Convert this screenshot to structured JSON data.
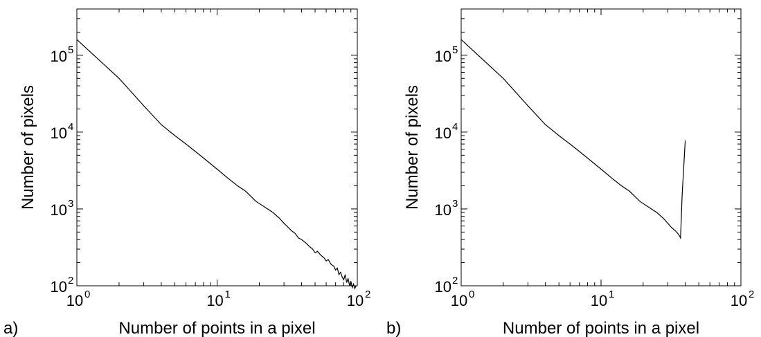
{
  "chart_data": [
    {
      "type": "line",
      "panel_label": "a)",
      "xlabel": "Number of points in a pixel",
      "ylabel": "Number of pixels",
      "xscale": "log",
      "yscale": "log",
      "xlim": [
        1,
        100
      ],
      "ylim": [
        100,
        400000
      ],
      "xticks": [
        {
          "base": "10",
          "exp": "0",
          "value": 1
        },
        {
          "base": "10",
          "exp": "1",
          "value": 10
        },
        {
          "base": "10",
          "exp": "2",
          "value": 100
        }
      ],
      "yticks": [
        {
          "base": "10",
          "exp": "2",
          "value": 100
        },
        {
          "base": "10",
          "exp": "3",
          "value": 1000
        },
        {
          "base": "10",
          "exp": "4",
          "value": 10000
        },
        {
          "base": "10",
          "exp": "5",
          "value": 100000
        }
      ],
      "grid": false,
      "series": [
        {
          "x": [
            1,
            2,
            3,
            4,
            5,
            6,
            7,
            8,
            10,
            12,
            14,
            16,
            19,
            22,
            25,
            28,
            30,
            32,
            34,
            36,
            38,
            40,
            43,
            46,
            48,
            50,
            52,
            55,
            58,
            60,
            62,
            65,
            68,
            70,
            72,
            74,
            76,
            78,
            80,
            82,
            84,
            86,
            88,
            90,
            92,
            94,
            96,
            98
          ],
          "y": [
            160000,
            50000,
            22000,
            12500,
            9000,
            7000,
            5600,
            4600,
            3300,
            2500,
            2000,
            1700,
            1250,
            1050,
            900,
            750,
            650,
            580,
            520,
            480,
            420,
            400,
            360,
            320,
            300,
            270,
            280,
            250,
            230,
            210,
            220,
            190,
            180,
            160,
            170,
            140,
            150,
            130,
            120,
            140,
            110,
            125,
            100,
            115,
            95,
            105,
            92,
            100
          ]
        }
      ]
    },
    {
      "type": "line",
      "panel_label": "b)",
      "xlabel": "Number of points in a pixel",
      "ylabel": "Number of pixels",
      "xscale": "log",
      "yscale": "log",
      "xlim": [
        1,
        100
      ],
      "ylim": [
        100,
        400000
      ],
      "xticks": [
        {
          "base": "10",
          "exp": "0",
          "value": 1
        },
        {
          "base": "10",
          "exp": "1",
          "value": 10
        },
        {
          "base": "10",
          "exp": "2",
          "value": 100
        }
      ],
      "yticks": [
        {
          "base": "10",
          "exp": "2",
          "value": 100
        },
        {
          "base": "10",
          "exp": "3",
          "value": 1000
        },
        {
          "base": "10",
          "exp": "4",
          "value": 10000
        },
        {
          "base": "10",
          "exp": "5",
          "value": 100000
        }
      ],
      "grid": false,
      "series": [
        {
          "x": [
            1,
            2,
            3,
            4,
            5,
            6,
            7,
            8,
            10,
            12,
            14,
            16,
            19,
            22,
            25,
            28,
            30,
            32,
            34,
            36,
            37,
            38,
            40
          ],
          "y": [
            160000,
            50000,
            22000,
            12500,
            9000,
            7000,
            5600,
            4600,
            3300,
            2500,
            2000,
            1700,
            1250,
            1050,
            900,
            750,
            650,
            570,
            520,
            460,
            420,
            1500,
            7800
          ]
        }
      ]
    }
  ]
}
